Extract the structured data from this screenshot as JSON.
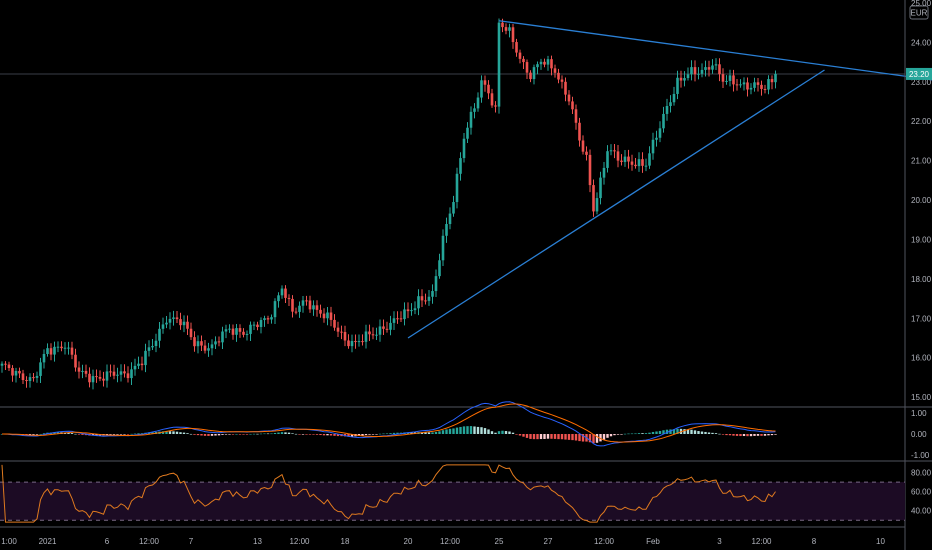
{
  "chart_data": {
    "type": "candlestick",
    "currency": "EUR",
    "last_price": "23.20",
    "price_axis": {
      "range": [
        14.8,
        25.0
      ],
      "ticks": [
        "15.00",
        "16.00",
        "17.00",
        "18.00",
        "19.00",
        "20.00",
        "21.00",
        "22.00",
        "23.00",
        "24.00"
      ],
      "top_tick": "25.00"
    },
    "time_axis": {
      "ticks": [
        {
          "label": "1:00",
          "bar": 2
        },
        {
          "label": "2021",
          "bar": 13
        },
        {
          "label": "6",
          "bar": 30
        },
        {
          "label": "12:00",
          "bar": 42
        },
        {
          "label": "7",
          "bar": 54
        },
        {
          "label": "13",
          "bar": 73
        },
        {
          "label": "12:00",
          "bar": 85
        },
        {
          "label": "18",
          "bar": 98
        },
        {
          "label": "20",
          "bar": 116
        },
        {
          "label": "12:00",
          "bar": 128
        },
        {
          "label": "25",
          "bar": 142
        },
        {
          "label": "27",
          "bar": 156
        },
        {
          "label": "12:00",
          "bar": 172
        },
        {
          "label": "Feb",
          "bar": 186
        },
        {
          "label": "3",
          "bar": 205
        },
        {
          "label": "12:00",
          "bar": 217
        },
        {
          "label": "8",
          "bar": 232
        },
        {
          "label": "10",
          "bar": 251
        }
      ]
    },
    "price_anchors": [
      [
        0,
        15.75
      ],
      [
        5,
        15.6
      ],
      [
        9,
        15.4
      ],
      [
        13,
        16.2
      ],
      [
        18,
        16.35
      ],
      [
        22,
        15.6
      ],
      [
        28,
        15.5
      ],
      [
        35,
        15.6
      ],
      [
        40,
        15.9
      ],
      [
        43,
        16.3
      ],
      [
        47,
        17.05
      ],
      [
        51,
        16.9
      ],
      [
        55,
        16.4
      ],
      [
        60,
        16.25
      ],
      [
        65,
        16.75
      ],
      [
        70,
        16.65
      ],
      [
        76,
        17.0
      ],
      [
        80,
        17.8
      ],
      [
        83,
        17.1
      ],
      [
        87,
        17.5
      ],
      [
        90,
        17.2
      ],
      [
        94,
        16.9
      ],
      [
        98,
        16.5
      ],
      [
        101,
        16.35
      ],
      [
        105,
        16.55
      ],
      [
        109,
        16.8
      ],
      [
        112,
        16.9
      ],
      [
        116,
        17.15
      ],
      [
        119,
        17.5
      ],
      [
        123,
        17.55
      ],
      [
        126,
        19.0
      ],
      [
        129,
        20.1
      ],
      [
        132,
        21.6
      ],
      [
        135,
        22.3
      ],
      [
        137,
        23.0
      ],
      [
        139,
        22.8
      ],
      [
        141,
        22.3
      ],
      [
        142,
        24.5
      ],
      [
        145,
        24.2
      ],
      [
        148,
        23.6
      ],
      [
        151,
        23.2
      ],
      [
        154,
        23.5
      ],
      [
        158,
        23.3
      ],
      [
        162,
        22.6
      ],
      [
        165,
        21.5
      ],
      [
        167,
        21.0
      ],
      [
        169,
        19.8
      ],
      [
        171,
        20.5
      ],
      [
        173,
        21.3
      ],
      [
        176,
        21.0
      ],
      [
        180,
        21.0
      ],
      [
        184,
        20.9
      ],
      [
        187,
        21.6
      ],
      [
        190,
        22.4
      ],
      [
        193,
        23.0
      ],
      [
        197,
        23.2
      ],
      [
        200,
        23.3
      ],
      [
        203,
        23.5
      ],
      [
        206,
        23.0
      ],
      [
        210,
        23.0
      ],
      [
        214,
        22.9
      ],
      [
        218,
        22.8
      ],
      [
        221,
        23.2
      ]
    ],
    "trendlines": [
      {
        "name": "upper",
        "from": {
          "bar": 142,
          "price": 24.55
        },
        "to": {
          "bar": 275,
          "price": 23.05
        }
      },
      {
        "name": "lower",
        "from": {
          "bar": 116,
          "price": 16.5
        },
        "to": {
          "bar": 235,
          "price": 23.3
        }
      }
    ],
    "macd": {
      "axis_ticks": [
        "1.00",
        "0.00",
        "-1.00"
      ],
      "range": [
        -1.2,
        1.2
      ]
    },
    "rsi": {
      "axis_ticks": [
        "80.00",
        "60.00",
        "40.00"
      ],
      "range": [
        25,
        90
      ],
      "upper_band": 70,
      "lower_band": 30
    }
  },
  "colors": {
    "up": "#26a69a",
    "down": "#ef5350",
    "background": "#000000",
    "trendline": "#2a7fd4",
    "macd_line": "#2962ff",
    "signal_line": "#ff6d00",
    "rsi_line": "#e07a1f",
    "rsi_band_fill": "#1c0b24",
    "axis_text": "#b2b5be",
    "separator": "#2a2e39",
    "price_badge": "#26a69a"
  }
}
